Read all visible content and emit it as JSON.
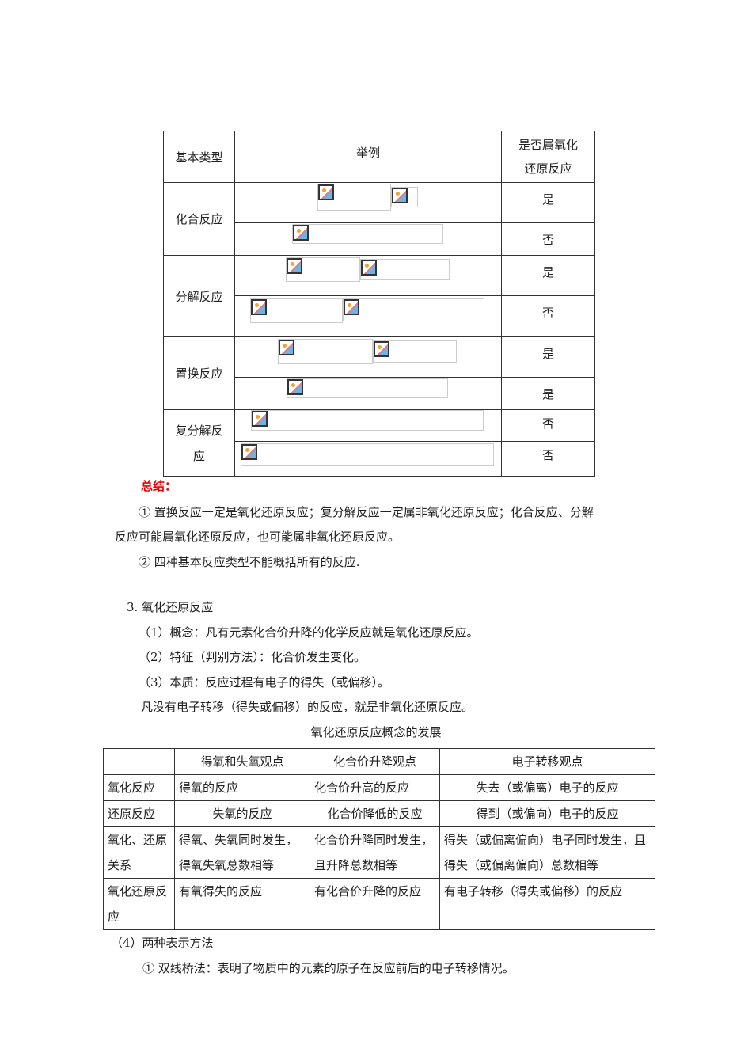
{
  "table1": {
    "headers": [
      "基本类型",
      "举例",
      "是否属氧化还原反应"
    ],
    "header_col3_lines": [
      "是否属氧化",
      "还原反应"
    ],
    "rows": [
      {
        "type": "化合反应",
        "answers": [
          "是",
          "否"
        ]
      },
      {
        "type": "分解反应",
        "answers": [
          "是",
          "否"
        ]
      },
      {
        "type": "置换反应",
        "answers": [
          "是",
          "是"
        ]
      },
      {
        "type": "复分解反应",
        "type_lines": [
          "复分解反",
          "应"
        ],
        "answers": [
          "否",
          "否"
        ]
      }
    ],
    "image_icon": "broken-image-icon"
  },
  "summary": {
    "title": "总结：",
    "title_color": "#e00000",
    "item1_line1": "① 置换反应一定是氧化还原反应；复分解反应一定属非氧化还原反应；化合反应、分解",
    "item1_line2": "反应可能属氧化还原反应，也可能属非氧化还原反应。",
    "item2": "② 四种基本反应类型不能概括所有的反应."
  },
  "section3": {
    "heading": "3. 氧化还原反应",
    "p1": "（1）概念：凡有元素化合价升降的化学反应就是氧化还原反应。",
    "p2": "（2）特征（判别方法）：化合价发生变化。",
    "p3": "（3）本质：反应过程有电子的得失（或偏移）。",
    "p4": "凡没有电子转移（得失或偏移）的反应，就是非氧化还原反应。",
    "caption": "氧化还原反应概念的发展"
  },
  "table2": {
    "headers": [
      "",
      "得氧和失氧观点",
      "化合价升降观点",
      "电子转移观点"
    ],
    "rows": [
      [
        "氧化反应",
        "得氧的反应",
        "化合价升高的反应",
        "失去（或偏离）电子的反应"
      ],
      [
        "还原反应",
        "失氧的反应",
        "化合价降低的反应",
        "得到（或偏向）电子的反应"
      ],
      [
        "氧化、还原关系",
        "得氧、失氧同时发生，得氧失氧总数相等",
        "化合价升降同时发生，且升降总数相等",
        "得失（或偏离偏向）电子同时发生，且得失（或偏离偏向）总数相等"
      ],
      [
        "氧化还原反应",
        "有氧得失的反应",
        "有化合价升降的反应",
        "有电子转移（得失或偏移）的反应"
      ]
    ]
  },
  "section4": {
    "heading": "（4）两种表示方法",
    "item1": "① 双线桥法：表明了物质中的元素的原子在反应前后的电子转移情况。"
  }
}
